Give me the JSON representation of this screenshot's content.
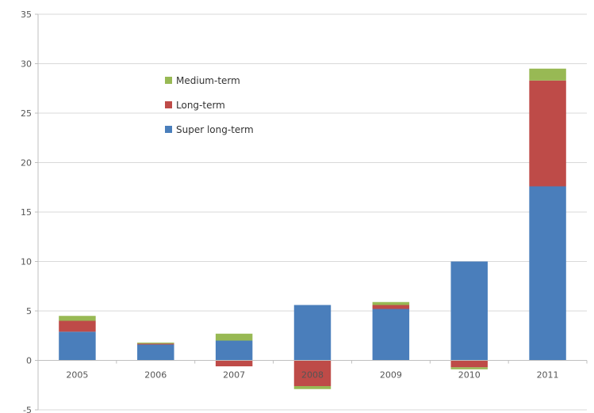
{
  "chart_data": {
    "type": "bar",
    "stacked": true,
    "categories": [
      "2005",
      "2006",
      "2007",
      "2008",
      "2009",
      "2010",
      "2011"
    ],
    "series": [
      {
        "name": "Super long-term",
        "color": "#4a7ebb",
        "values": [
          2.9,
          1.6,
          2.0,
          5.6,
          5.2,
          10.0,
          17.6
        ]
      },
      {
        "name": "Long-term",
        "color": "#be4b48",
        "values": [
          1.1,
          0.1,
          -0.6,
          -2.6,
          0.4,
          -0.7,
          10.7
        ]
      },
      {
        "name": "Medium-term",
        "color": "#98b954",
        "values": [
          0.5,
          0.1,
          0.7,
          -0.3,
          0.3,
          -0.2,
          1.2
        ]
      }
    ],
    "ylim": [
      -5,
      35
    ],
    "yticks": [
      -5,
      0,
      5,
      10,
      15,
      20,
      25,
      30,
      35
    ],
    "ytick_labels": [
      "-5",
      "0",
      "5",
      "10",
      "15",
      "20",
      "25",
      "30",
      "35"
    ],
    "grid": true,
    "legend": {
      "placement": "top-left",
      "order": [
        "Medium-term",
        "Long-term",
        "Super long-term"
      ]
    }
  }
}
